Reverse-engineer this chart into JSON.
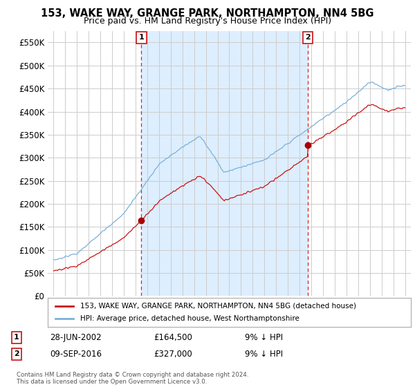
{
  "title": "153, WAKE WAY, GRANGE PARK, NORTHAMPTON, NN4 5BG",
  "subtitle": "Price paid vs. HM Land Registry's House Price Index (HPI)",
  "footnote": "Contains HM Land Registry data © Crown copyright and database right 2024.\nThis data is licensed under the Open Government Licence v3.0.",
  "legend_line1": "153, WAKE WAY, GRANGE PARK, NORTHAMPTON, NN4 5BG (detached house)",
  "legend_line2": "HPI: Average price, detached house, West Northamptonshire",
  "sale1_label": "1",
  "sale1_date": "28-JUN-2002",
  "sale1_price": 164500,
  "sale1_year": 2002.5,
  "sale2_label": "2",
  "sale2_date": "09-SEP-2016",
  "sale2_price": 327000,
  "sale2_year": 2016.7,
  "hpi_line_color": "#7ab0d8",
  "hpi_fill_color": "#ddeeff",
  "price_line_color": "#cc1111",
  "marker_fill_color": "#aa0000",
  "marker_border_color": "#cc0000",
  "background_color": "#ffffff",
  "grid_color": "#cccccc",
  "ylim_min": 0,
  "ylim_max": 575000,
  "ytick_step": 50000,
  "xlim_start": 1994.5,
  "xlim_end": 2025.5,
  "xticks": [
    1995,
    1996,
    1997,
    1998,
    1999,
    2000,
    2001,
    2002,
    2003,
    2004,
    2005,
    2006,
    2007,
    2008,
    2009,
    2010,
    2011,
    2012,
    2013,
    2014,
    2015,
    2016,
    2017,
    2018,
    2019,
    2020,
    2021,
    2022,
    2023,
    2024,
    2025
  ]
}
